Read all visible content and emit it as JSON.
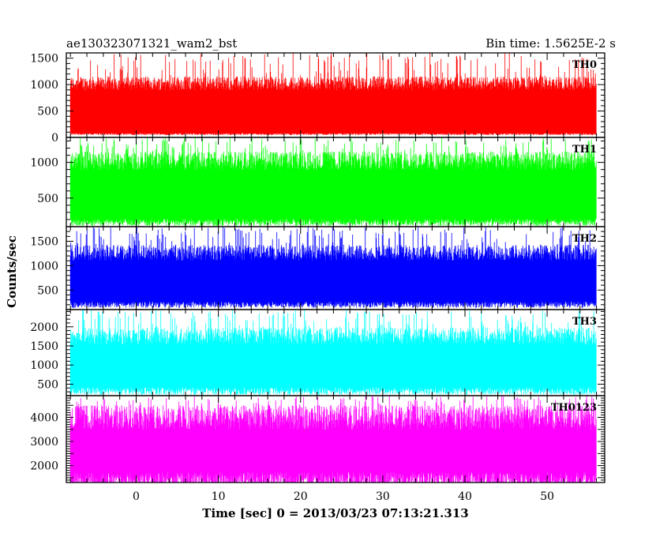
{
  "header": {
    "left_title": "ae130323071321_wam2_bst",
    "right_title": "Bin time: 1.5625E-2 s"
  },
  "chart_data": {
    "type": "line",
    "title": "ae130323071321_wam2_bst",
    "xlabel": "Time [sec] 0 = 2013/03/23 07:13:21.313",
    "ylabel": "Counts/sec",
    "xlim": [
      -8.5,
      57.0
    ],
    "data_x_range": [
      -8.0,
      56.0
    ],
    "x_ticks": [
      0,
      10,
      20,
      30,
      40,
      50
    ],
    "grid": false,
    "series": [
      {
        "name": "TH0",
        "color": "#ff0000",
        "ylim": [
          0,
          1600
        ],
        "y_ticks": [
          0,
          500,
          1000,
          1500
        ],
        "band_low": 80,
        "band_high": 1050,
        "spike_max": 1600,
        "mean": 620
      },
      {
        "name": "TH1",
        "color": "#00ff00",
        "ylim": [
          100,
          1350
        ],
        "y_ticks": [
          500,
          1000
        ],
        "band_low": 200,
        "band_high": 1050,
        "spike_max": 1350,
        "mean": 620
      },
      {
        "name": "TH2",
        "color": "#0000ff",
        "ylim": [
          100,
          1800
        ],
        "y_ticks": [
          500,
          1000,
          1500
        ],
        "band_low": 250,
        "band_high": 1300,
        "spike_max": 1800,
        "mean": 760
      },
      {
        "name": "TH3",
        "color": "#00ffff",
        "ylim": [
          200,
          2450
        ],
        "y_ticks": [
          500,
          1000,
          1500,
          2000
        ],
        "band_low": 400,
        "band_high": 1800,
        "spike_max": 2450,
        "mean": 1050
      },
      {
        "name": "TH0123",
        "color": "#ff00ff",
        "ylim": [
          1300,
          4900
        ],
        "y_ticks": [
          2000,
          3000,
          4000
        ],
        "band_low": 1650,
        "band_high": 4100,
        "spike_max": 4900,
        "mean": 3000
      }
    ]
  }
}
